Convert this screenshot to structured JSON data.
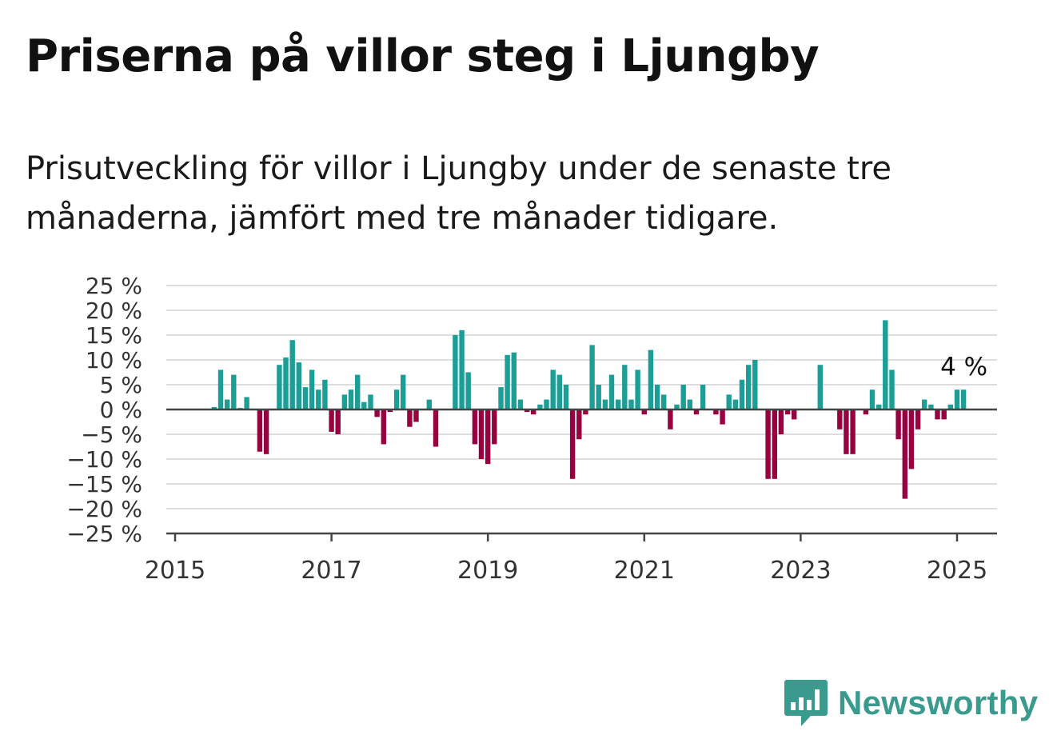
{
  "title": "Priserna på villor steg i Ljungby",
  "subtitle": "Prisutveckling för villor i Ljungby under de senaste tre månaderna, jämfört med tre månader tidigare.",
  "logo": {
    "text": "Newsworthy",
    "icon": "bar-chart-speech-bubble-icon",
    "color": "#3a9a8e"
  },
  "colors": {
    "positive": "#1a9e95",
    "negative": "#990040",
    "grid": "#dddddd",
    "axis": "#444444"
  },
  "chart_data": {
    "type": "bar",
    "ylim": [
      -25,
      25
    ],
    "xlim": [
      2015,
      2025.5
    ],
    "y_ticks": [
      {
        "value": 25,
        "label": "25 %"
      },
      {
        "value": 20,
        "label": "20 %"
      },
      {
        "value": 15,
        "label": "15 %"
      },
      {
        "value": 10,
        "label": "10 %"
      },
      {
        "value": 5,
        "label": "5 %"
      },
      {
        "value": 0,
        "label": "0 %"
      },
      {
        "value": -5,
        "label": "−5 %"
      },
      {
        "value": -10,
        "label": "−10 %"
      },
      {
        "value": -15,
        "label": "−15 %"
      },
      {
        "value": -20,
        "label": "−20 %"
      },
      {
        "value": -25,
        "label": "−25 %"
      }
    ],
    "x_ticks": [
      {
        "value": 2015,
        "label": "2015"
      },
      {
        "value": 2017,
        "label": "2017"
      },
      {
        "value": 2019,
        "label": "2019"
      },
      {
        "value": 2021,
        "label": "2021"
      },
      {
        "value": 2023,
        "label": "2023"
      },
      {
        "value": 2025,
        "label": "2025"
      }
    ],
    "grid": true,
    "start_year": 2015.5,
    "step_years": 0.08333,
    "values": [
      0.5,
      8,
      2,
      7,
      0.3,
      2.5,
      0,
      -8.5,
      -9,
      0,
      9,
      10.5,
      14,
      9.5,
      4.5,
      8,
      4,
      6,
      -4.5,
      -5,
      3,
      4,
      7,
      1.5,
      3,
      -1.5,
      -7,
      -0.5,
      4,
      7,
      -3.5,
      -2.5,
      0,
      2,
      -7.5,
      0,
      0,
      15,
      16,
      7.5,
      -7,
      -10,
      -11,
      -7,
      4.5,
      11,
      11.5,
      2,
      -0.5,
      -1,
      1,
      2,
      8,
      7,
      5,
      -14,
      -6,
      -1,
      13,
      5,
      2,
      7,
      2,
      9,
      2,
      8,
      -1,
      12,
      5,
      3,
      -4,
      1,
      5,
      2,
      -1,
      5,
      0,
      -1,
      -3,
      3,
      2,
      6,
      9,
      10,
      0,
      -14,
      -14,
      -5,
      -1,
      -2,
      0,
      0,
      0,
      9,
      0,
      0,
      -4,
      -9,
      -9,
      0,
      -1,
      4,
      1,
      18,
      8,
      -6,
      -18,
      -12,
      -4,
      2,
      1,
      -2,
      -2,
      1,
      4,
      4
    ],
    "annotation": {
      "label": "4 %",
      "value": 4
    }
  }
}
